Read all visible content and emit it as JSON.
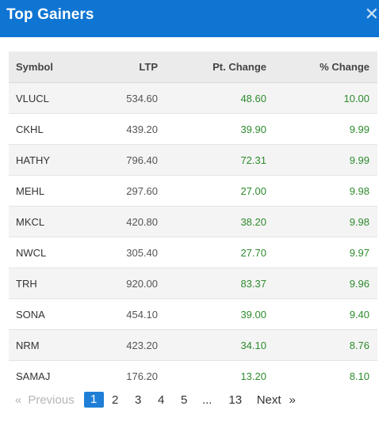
{
  "header": {
    "title": "Top Gainers",
    "close_icon": "close-icon"
  },
  "table": {
    "columns": [
      "Symbol",
      "LTP",
      "Pt. Change",
      "% Change"
    ],
    "rows": [
      {
        "symbol": "VLUCL",
        "ltp": "534.60",
        "pt": "48.60",
        "pct": "10.00"
      },
      {
        "symbol": "CKHL",
        "ltp": "439.20",
        "pt": "39.90",
        "pct": "9.99"
      },
      {
        "symbol": "HATHY",
        "ltp": "796.40",
        "pt": "72.31",
        "pct": "9.99"
      },
      {
        "symbol": "MEHL",
        "ltp": "297.60",
        "pt": "27.00",
        "pct": "9.98"
      },
      {
        "symbol": "MKCL",
        "ltp": "420.80",
        "pt": "38.20",
        "pct": "9.98"
      },
      {
        "symbol": "NWCL",
        "ltp": "305.40",
        "pt": "27.70",
        "pct": "9.97"
      },
      {
        "symbol": "TRH",
        "ltp": "920.00",
        "pt": "83.37",
        "pct": "9.96"
      },
      {
        "symbol": "SONA",
        "ltp": "454.10",
        "pt": "39.00",
        "pct": "9.40"
      },
      {
        "symbol": "NRM",
        "ltp": "423.20",
        "pt": "34.10",
        "pct": "8.76"
      },
      {
        "symbol": "SAMAJ",
        "ltp": "176.20",
        "pt": "13.20",
        "pct": "8.10"
      }
    ]
  },
  "pagination": {
    "prev_arrow": "«",
    "prev_label": "Previous",
    "pages": [
      "1",
      "2",
      "3",
      "4",
      "5"
    ],
    "ellipsis": "...",
    "last_page": "13",
    "next_label": "Next",
    "next_arrow": "»",
    "current": "1"
  },
  "colors": {
    "header_bg": "#0f75d3",
    "gain": "#2e8b2e",
    "active_page": "#1f7fd6"
  }
}
